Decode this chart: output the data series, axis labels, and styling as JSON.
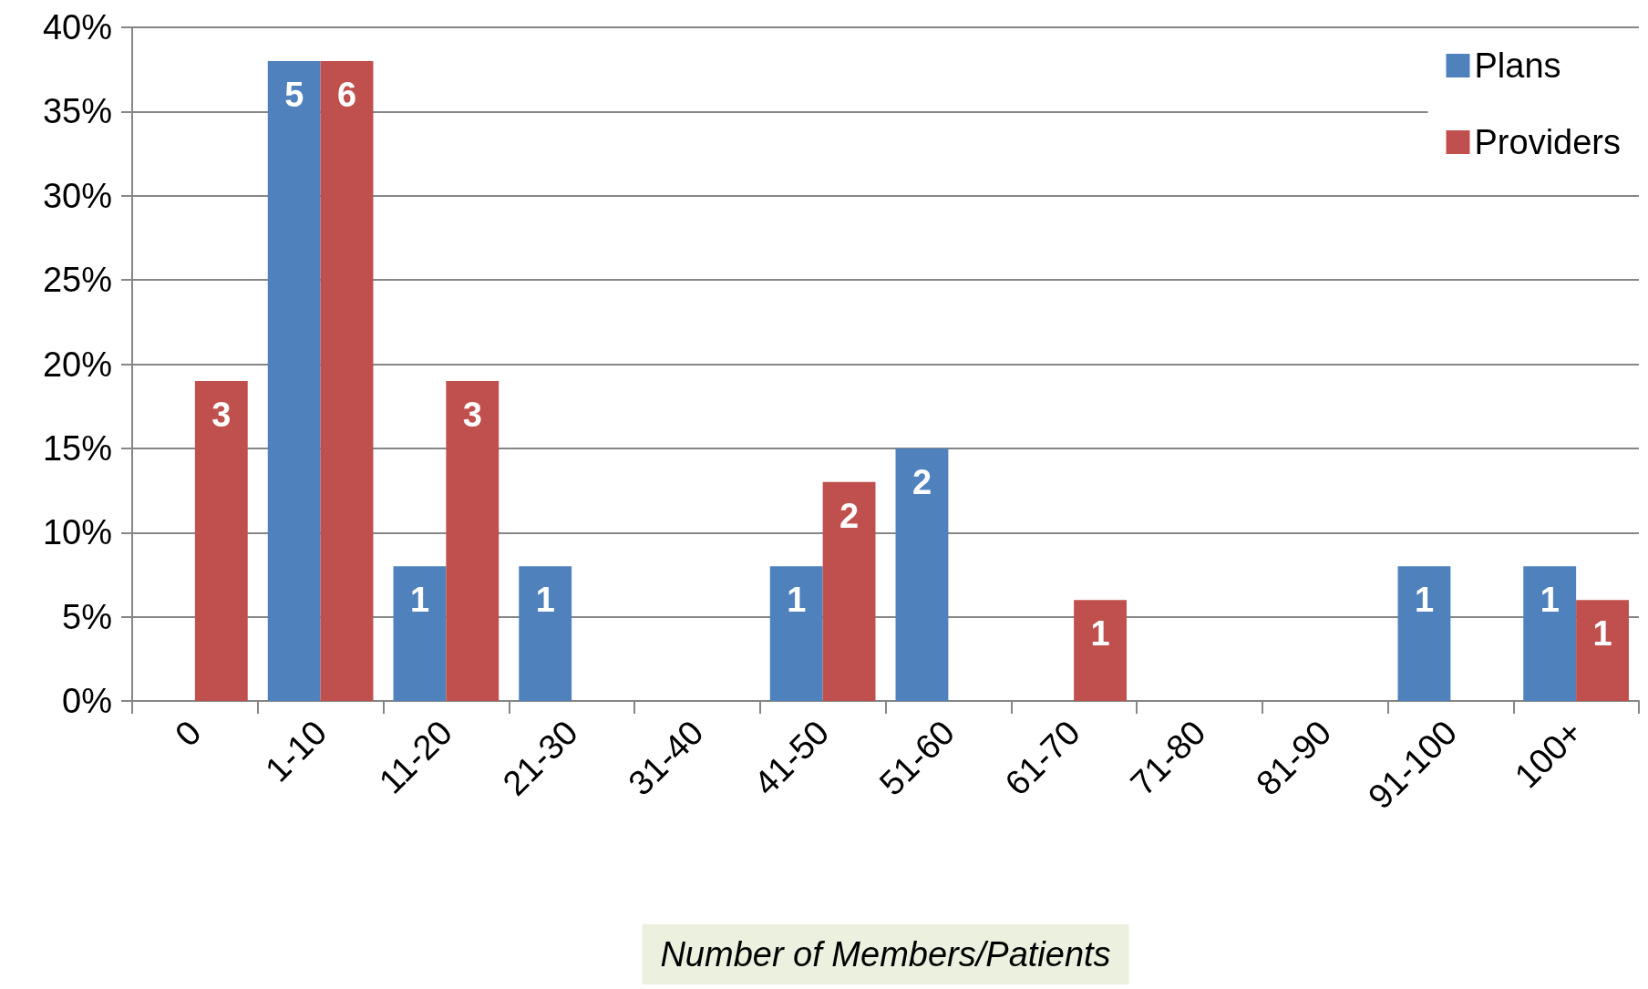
{
  "chart_data": {
    "type": "bar",
    "xlabel": "Number of Members/Patients",
    "categories": [
      "0",
      "1-10",
      "11-20",
      "21-30",
      "31-40",
      "41-50",
      "51-60",
      "61-70",
      "71-80",
      "81-90",
      "91-100",
      "100+"
    ],
    "series": [
      {
        "name": "Plans",
        "color": "#4f81bd",
        "values": [
          null,
          38,
          8,
          8,
          null,
          8,
          15,
          null,
          null,
          null,
          8,
          8
        ]
      },
      {
        "name": "Providers",
        "color": "#c0504d",
        "values": [
          19,
          38,
          19,
          null,
          null,
          13,
          null,
          6,
          null,
          null,
          null,
          6
        ]
      }
    ],
    "annotations": [
      {
        "text": "5",
        "x": "1-10",
        "y": 38
      },
      {
        "text": "1",
        "x": "11-20",
        "y": 8
      },
      {
        "text": "1",
        "x": "21-30",
        "y": 8
      },
      {
        "text": "1",
        "x": "41-50",
        "y": 8
      },
      {
        "text": "2",
        "x": "51-60",
        "y": 15
      },
      {
        "text": "1",
        "x": "91-100",
        "y": 8
      },
      {
        "text": "1",
        "x": "100+",
        "y": 8
      },
      {
        "text": "3",
        "x": "0",
        "y": 19
      },
      {
        "text": "6",
        "x": "1-10",
        "y": 38
      },
      {
        "text": "3",
        "x": "11-20",
        "y": 19
      },
      {
        "text": "2",
        "x": "41-50",
        "y": 13
      },
      {
        "text": "1",
        "x": "61-70",
        "y": 6
      },
      {
        "text": "1",
        "x": "100+",
        "y": 6
      }
    ],
    "ylim": [
      0,
      40
    ],
    "yticks": [
      {
        "value": 0,
        "label": "0%"
      },
      {
        "value": 5,
        "label": "5%"
      },
      {
        "value": 10,
        "label": "10%"
      },
      {
        "value": 15,
        "label": "15%"
      },
      {
        "value": 20,
        "label": "20%"
      },
      {
        "value": 25,
        "label": "25%"
      },
      {
        "value": 30,
        "label": "30%"
      },
      {
        "value": 35,
        "label": "35%"
      },
      {
        "value": 40,
        "label": "40%"
      }
    ],
    "grid": "y",
    "legend": "top right"
  }
}
